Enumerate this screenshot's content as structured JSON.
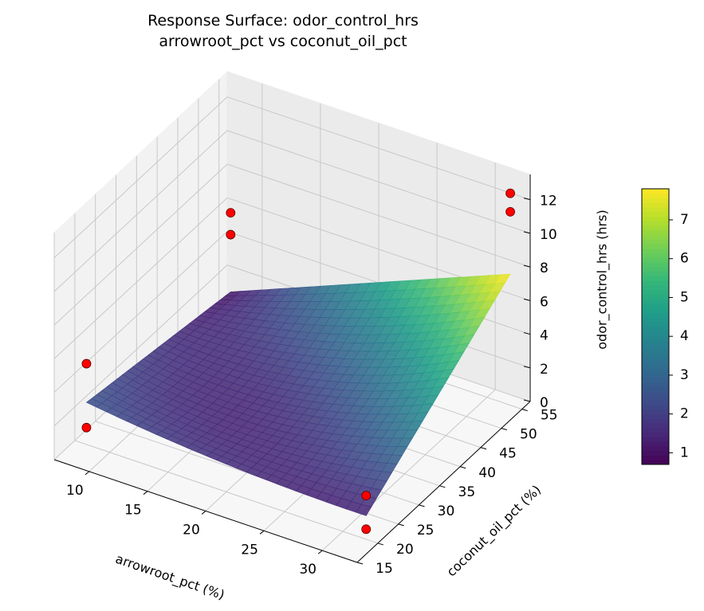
{
  "chart_data": {
    "type": "surface3d",
    "title": "Response Surface: odor_control_hrs",
    "subtitle": "arrowroot_pct vs coconut_oil_pct",
    "xlabel": "arrowroot_pct (%)",
    "ylabel": "coconut_oil_pct (%)",
    "zlabel": "odor_control_hrs (hrs)",
    "xlim": [
      7,
      33
    ],
    "ylim": [
      15,
      57
    ],
    "zlim": [
      0,
      13.5
    ],
    "xticks": [
      10,
      15,
      20,
      25,
      30
    ],
    "yticks": [
      15,
      20,
      25,
      30,
      35,
      40,
      45,
      50,
      55
    ],
    "zticks": [
      0,
      2,
      4,
      6,
      8,
      10,
      12
    ],
    "surface": {
      "colormap": "viridis",
      "x_range": [
        8,
        32
      ],
      "y_range": [
        20,
        55
      ],
      "z_corners": {
        "x8_y20": 2.5,
        "x32_y20": 1.4,
        "x8_y55": 1.1,
        "x32_y55": 7.8
      },
      "z_min": 0.7
    },
    "points": [
      {
        "x": 8,
        "y": 20,
        "z": 1.0
      },
      {
        "x": 8,
        "y": 20,
        "z": 4.8
      },
      {
        "x": 8,
        "y": 55,
        "z": 4.5
      },
      {
        "x": 8,
        "y": 55,
        "z": 5.8
      },
      {
        "x": 32,
        "y": 20,
        "z": 0.6
      },
      {
        "x": 32,
        "y": 20,
        "z": 2.6
      },
      {
        "x": 32,
        "y": 55,
        "z": 11.5
      },
      {
        "x": 32,
        "y": 55,
        "z": 12.6
      }
    ],
    "colorbar": {
      "min": 0.7,
      "max": 7.8,
      "ticks": [
        1,
        2,
        3,
        4,
        5,
        6,
        7
      ]
    },
    "grid": true
  }
}
